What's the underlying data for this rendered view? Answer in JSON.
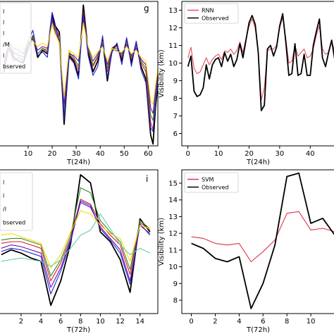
{
  "chart_data": [
    {
      "type": "line",
      "panel_label": "g",
      "xlabel": "T(24h)",
      "ylabel": "",
      "xticks": [
        10,
        20,
        30,
        40,
        50,
        60
      ],
      "xlim": [
        -2,
        64
      ],
      "ylim": [
        5.5,
        13.5
      ],
      "legend_placement": "top-left",
      "legend_entries": [
        "l",
        "l",
        "l",
        "/M",
        "l",
        "bserved"
      ],
      "series": [
        {
          "name": "",
          "color": "#000000",
          "x": [
            0,
            2,
            4,
            6,
            8,
            10,
            12,
            14,
            16,
            18,
            20,
            21,
            23,
            25,
            27,
            29,
            31,
            33,
            35,
            37,
            39,
            41,
            43,
            45,
            47,
            49,
            51,
            53,
            55,
            57,
            59,
            61,
            62,
            63,
            64
          ],
          "y": [
            9.6,
            11.1,
            10.4,
            10.2,
            10.1,
            10.9,
            11.6,
            10.4,
            10.8,
            10.6,
            12.8,
            12.2,
            11.8,
            6.7,
            10.5,
            10.2,
            9.4,
            13.3,
            10.7,
            9.6,
            10.2,
            11.4,
            9.1,
            10.9,
            11.1,
            10.2,
            11.4,
            10.1,
            11.2,
            9.9,
            9.2,
            6.1,
            5.6,
            7.6,
            8.9
          ]
        },
        {
          "name": "",
          "color": "#e31a1c",
          "x": [
            0,
            2,
            4,
            6,
            8,
            10,
            12,
            14,
            16,
            18,
            20,
            21,
            23,
            25,
            27,
            29,
            31,
            33,
            35,
            37,
            39,
            41,
            43,
            45,
            47,
            49,
            51,
            53,
            55,
            57,
            59,
            61,
            62,
            63,
            64
          ],
          "y": [
            9.9,
            11.0,
            10.6,
            10.5,
            10.4,
            11.0,
            11.5,
            10.6,
            10.9,
            10.7,
            12.5,
            12.1,
            11.6,
            7.2,
            10.6,
            10.3,
            9.7,
            12.9,
            10.8,
            9.9,
            10.4,
            11.3,
            9.6,
            10.9,
            11.0,
            10.4,
            11.3,
            10.3,
            11.1,
            10.1,
            9.6,
            6.8,
            6.4,
            8.0,
            9.2
          ]
        },
        {
          "name": "",
          "color": "#2e8b2e",
          "x": [
            0,
            2,
            4,
            6,
            8,
            10,
            12,
            14,
            16,
            18,
            20,
            21,
            23,
            25,
            27,
            29,
            31,
            33,
            35,
            37,
            39,
            41,
            43,
            45,
            47,
            49,
            51,
            53,
            55,
            57,
            59,
            61,
            62,
            63,
            64
          ],
          "y": [
            10.0,
            11.1,
            10.7,
            10.6,
            10.4,
            11.1,
            11.6,
            10.6,
            10.9,
            10.8,
            12.4,
            12.0,
            11.5,
            7.5,
            10.7,
            10.4,
            9.9,
            12.7,
            10.8,
            10.0,
            10.5,
            11.2,
            9.8,
            10.9,
            10.9,
            10.5,
            11.2,
            10.4,
            11.0,
            10.2,
            9.8,
            7.2,
            6.9,
            8.3,
            9.4
          ]
        },
        {
          "name": "",
          "color": "#6a0dad",
          "x": [
            0,
            2,
            4,
            6,
            8,
            10,
            12,
            14,
            16,
            18,
            20,
            21,
            23,
            25,
            27,
            29,
            31,
            33,
            35,
            37,
            39,
            41,
            43,
            45,
            47,
            49,
            51,
            53,
            55,
            57,
            59,
            61,
            62,
            63,
            64
          ],
          "y": [
            10.1,
            11.2,
            10.9,
            10.8,
            10.6,
            11.2,
            11.4,
            10.8,
            11.0,
            10.9,
            12.6,
            11.9,
            11.3,
            7.8,
            10.6,
            10.5,
            10.2,
            12.5,
            10.9,
            10.2,
            10.6,
            11.1,
            10.0,
            10.8,
            10.8,
            10.6,
            11.1,
            10.5,
            10.9,
            10.3,
            10.0,
            7.6,
            7.3,
            8.5,
            9.6
          ]
        },
        {
          "name": "",
          "color": "#2222cc",
          "x": [
            0,
            2,
            4,
            6,
            8,
            10,
            12,
            14,
            16,
            18,
            20,
            21,
            23,
            25,
            27,
            29,
            31,
            33,
            35,
            37,
            39,
            41,
            43,
            45,
            47,
            49,
            51,
            53,
            55,
            57,
            59,
            61,
            62,
            63,
            64
          ],
          "y": [
            9.7,
            10.9,
            10.2,
            10.4,
            10.2,
            11.3,
            11.9,
            10.5,
            10.7,
            10.4,
            12.9,
            12.4,
            11.2,
            7.0,
            10.4,
            10.1,
            9.2,
            12.8,
            10.5,
            9.4,
            9.9,
            11.6,
            9.3,
            10.7,
            11.2,
            10.0,
            11.5,
            9.9,
            11.3,
            9.7,
            9.0,
            6.5,
            6.3,
            7.8,
            9.1
          ]
        },
        {
          "name": "",
          "color": "#ffd700",
          "x": [
            0,
            2,
            4,
            6,
            8,
            10,
            12,
            14,
            16,
            18,
            20,
            21,
            23,
            25,
            27,
            29,
            31,
            33,
            35,
            37,
            39,
            41,
            43,
            45,
            47,
            49,
            51,
            53,
            55,
            57,
            59,
            61,
            62,
            63,
            64
          ],
          "y": [
            10.3,
            11.3,
            11.1,
            11.0,
            10.8,
            11.4,
            11.3,
            11.0,
            11.2,
            11.0,
            12.2,
            11.8,
            11.2,
            8.2,
            10.8,
            10.6,
            10.4,
            12.3,
            11.0,
            10.4,
            10.7,
            11.0,
            10.2,
            10.9,
            10.7,
            10.7,
            11.0,
            10.6,
            10.8,
            10.4,
            10.2,
            8.0,
            7.8,
            8.8,
            9.8
          ]
        }
      ]
    },
    {
      "type": "line",
      "panel_label": "",
      "xlabel": "T(24h)",
      "ylabel": "Visibility (km)",
      "xticks": [
        0,
        10,
        20,
        30,
        40
      ],
      "yticks": [
        6,
        7,
        8,
        9,
        10,
        11,
        12,
        13
      ],
      "xlim": [
        -2,
        48
      ],
      "ylim": [
        5.3,
        13.5
      ],
      "legend_placement": "top-left",
      "legend_entries": [
        "RNN",
        "Observed"
      ],
      "series": [
        {
          "name": "RNN",
          "color": "#e05060",
          "x": [
            0,
            1,
            2,
            3,
            4,
            5,
            6,
            7,
            8,
            9,
            10,
            11,
            12,
            13,
            14,
            15,
            16,
            17,
            18,
            19,
            20,
            21,
            22,
            23,
            24,
            25,
            26,
            27,
            28,
            29,
            30,
            31,
            32,
            33,
            34,
            35,
            36,
            37,
            38,
            39,
            40,
            41,
            42,
            43,
            44,
            45,
            46,
            47,
            48
          ],
          "y": [
            10.3,
            10.9,
            9.7,
            9.4,
            9.5,
            9.9,
            10.3,
            9.9,
            10.2,
            10.4,
            10.5,
            10.2,
            10.7,
            10.6,
            10.8,
            10.5,
            10.7,
            11.2,
            10.6,
            11.4,
            12.1,
            12.5,
            12.0,
            10.6,
            7.9,
            8.6,
            10.7,
            10.8,
            10.8,
            11.0,
            12.0,
            12.6,
            11.4,
            10.0,
            10.1,
            11.0,
            10.4,
            10.6,
            10.8,
            10.3,
            10.4,
            10.8,
            11.6,
            12.1,
            10.8,
            10.5,
            10.6,
            11.2,
            10.7
          ]
        },
        {
          "name": "Observed",
          "color": "#000000",
          "x": [
            0,
            1,
            2,
            3,
            4,
            5,
            6,
            7,
            8,
            9,
            10,
            11,
            12,
            13,
            14,
            15,
            16,
            17,
            18,
            19,
            20,
            21,
            22,
            23,
            24,
            25,
            26,
            27,
            28,
            29,
            30,
            31,
            32,
            33,
            34,
            35,
            36,
            37,
            38,
            39,
            40,
            41,
            42,
            43,
            44,
            45,
            46,
            47,
            48
          ],
          "y": [
            9.8,
            10.4,
            8.4,
            8.1,
            8.2,
            8.6,
            9.9,
            9.1,
            9.9,
            10.2,
            10.3,
            9.8,
            10.6,
            10.1,
            10.5,
            9.8,
            10.2,
            11.1,
            10.3,
            11.3,
            12.3,
            12.7,
            12.2,
            10.6,
            7.3,
            7.6,
            10.8,
            11.0,
            10.4,
            10.9,
            12.1,
            12.8,
            11.2,
            9.3,
            9.4,
            11.1,
            9.3,
            9.4,
            10.5,
            9.3,
            9.3,
            11.0,
            11.8,
            12.5,
            10.3,
            9.8,
            10.6,
            11.3,
            10.2
          ]
        }
      ]
    },
    {
      "type": "line",
      "panel_label": "i",
      "xlabel": "T(72h)",
      "ylabel": "",
      "xticks": [
        2,
        4,
        6,
        8,
        10,
        12,
        14
      ],
      "xlim": [
        -0.2,
        15.8
      ],
      "ylim": [
        7.0,
        15.8
      ],
      "legend_placement": "top-left",
      "legend_entries": [
        "l",
        "l",
        "/l",
        "bserved"
      ],
      "series": [
        {
          "name": "",
          "color": "#000000",
          "x": [
            0,
            1,
            2,
            3,
            4,
            5,
            6,
            7,
            8,
            9,
            10,
            11,
            12,
            13,
            14,
            15
          ],
          "y": [
            10.6,
            10.9,
            10.7,
            10.4,
            10.2,
            7.5,
            9.0,
            11.3,
            15.5,
            15.0,
            12.0,
            11.4,
            10.3,
            8.3,
            12.8,
            12.0
          ]
        },
        {
          "name": "",
          "color": "#e31a1c",
          "x": [
            0,
            1,
            2,
            3,
            4,
            5,
            6,
            7,
            8,
            9,
            10,
            11,
            12,
            13,
            14,
            15
          ],
          "y": [
            11.3,
            11.4,
            11.4,
            11.2,
            11.0,
            9.0,
            10.1,
            11.6,
            14.0,
            13.7,
            12.5,
            11.8,
            11.2,
            9.4,
            12.6,
            12.1
          ]
        },
        {
          "name": "",
          "color": "#2e8b2e",
          "x": [
            0,
            1,
            2,
            3,
            4,
            5,
            6,
            7,
            8,
            9,
            10,
            11,
            12,
            13,
            14,
            15
          ],
          "y": [
            11.5,
            11.6,
            11.6,
            11.4,
            11.2,
            9.3,
            10.3,
            11.8,
            14.7,
            14.4,
            12.7,
            12.0,
            11.4,
            9.7,
            12.7,
            12.2
          ]
        },
        {
          "name": "",
          "color": "#6a0dad",
          "x": [
            0,
            1,
            2,
            3,
            4,
            5,
            6,
            7,
            8,
            9,
            10,
            11,
            12,
            13,
            14,
            15
          ],
          "y": [
            11.0,
            11.2,
            11.1,
            10.9,
            10.7,
            8.6,
            9.8,
            11.5,
            13.8,
            13.5,
            12.3,
            11.6,
            10.9,
            9.0,
            12.4,
            11.9
          ]
        },
        {
          "name": "",
          "color": "#2222cc",
          "x": [
            0,
            1,
            2,
            3,
            4,
            5,
            6,
            7,
            8,
            9,
            10,
            11,
            12,
            13,
            14,
            15
          ],
          "y": [
            10.8,
            11.0,
            10.9,
            10.7,
            10.5,
            8.2,
            9.6,
            11.4,
            13.9,
            13.6,
            12.2,
            11.5,
            10.7,
            8.8,
            12.5,
            11.8
          ]
        },
        {
          "name": "",
          "color": "#ffd700",
          "x": [
            0,
            1,
            2,
            3,
            4,
            5,
            6,
            7,
            8,
            9,
            10,
            11,
            12,
            13,
            14,
            15
          ],
          "y": [
            11.8,
            11.9,
            11.7,
            11.5,
            11.3,
            9.8,
            10.6,
            12.0,
            13.3,
            13.1,
            12.4,
            11.9,
            11.6,
            10.2,
            12.4,
            12.2
          ]
        },
        {
          "name": "",
          "color": "#66cdaa",
          "x": [
            0,
            1,
            2,
            3,
            4,
            5,
            6,
            7,
            8,
            9,
            10,
            11,
            12,
            13,
            14,
            15
          ],
          "y": [
            10.2,
            10.3,
            10.4,
            10.3,
            10.2,
            9.9,
            10.3,
            11.0,
            11.8,
            12.1,
            13.1,
            12.2,
            11.2,
            10.6,
            11.0,
            10.7
          ]
        }
      ]
    },
    {
      "type": "line",
      "panel_label": "",
      "xlabel": "T(72h)",
      "ylabel": "Visibility (km)",
      "xticks": [
        0,
        2,
        4,
        6,
        8,
        10
      ],
      "yticks": [
        8,
        9,
        10,
        11,
        12,
        13,
        14,
        15
      ],
      "xlim": [
        -0.8,
        12
      ],
      "ylim": [
        7.2,
        15.8
      ],
      "legend_placement": "top-left",
      "legend_entries": [
        "SVM",
        "Observed"
      ],
      "series": [
        {
          "name": "SVM",
          "color": "#e0304a",
          "x": [
            0,
            1,
            2,
            3,
            4,
            5,
            6,
            7,
            8,
            9,
            10,
            11,
            12
          ],
          "y": [
            11.8,
            11.7,
            11.4,
            11.3,
            11.4,
            10.3,
            10.9,
            11.6,
            13.2,
            13.3,
            12.2,
            12.3,
            12.1
          ]
        },
        {
          "name": "Observed",
          "color": "#000000",
          "x": [
            0,
            1,
            2,
            3,
            4,
            5,
            6,
            7,
            8,
            9,
            10,
            11,
            12
          ],
          "y": [
            11.4,
            11.1,
            10.5,
            10.3,
            10.6,
            7.5,
            9.0,
            11.3,
            15.4,
            15.6,
            12.6,
            12.9,
            11.9
          ]
        }
      ]
    }
  ]
}
